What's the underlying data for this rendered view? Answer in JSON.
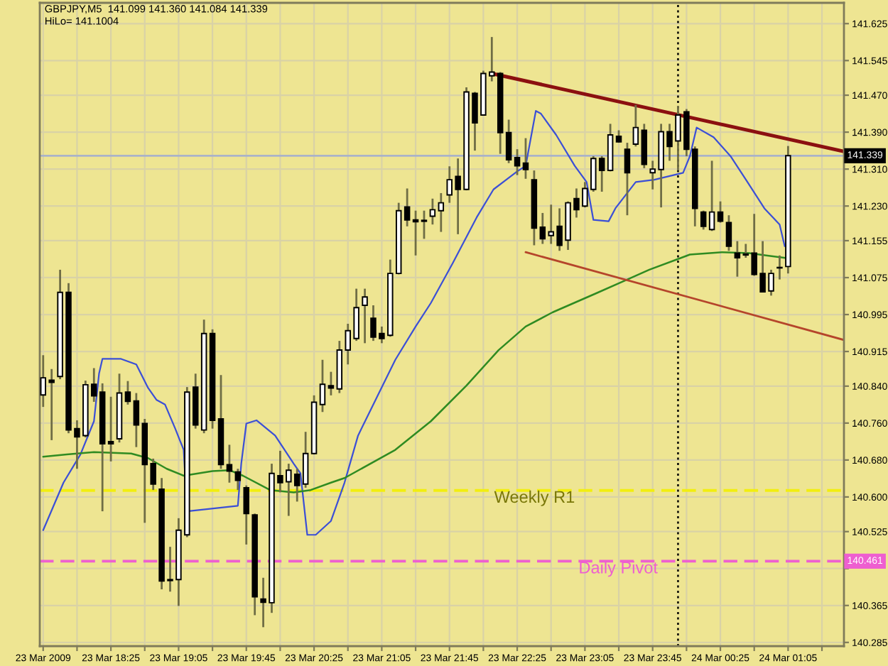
{
  "chart_data": {
    "type": "candlestick",
    "title": "GBPJPY,M5  141.099 141.360 141.084 141.339",
    "subtitle": "HiLo= 141.1004",
    "x": [
      "2009-03-23T17:45",
      "2009-03-23T17:50",
      "2009-03-23T17:55",
      "2009-03-23T18:00",
      "2009-03-23T18:05",
      "2009-03-23T18:10",
      "2009-03-23T18:15",
      "2009-03-23T18:20",
      "2009-03-23T18:25",
      "2009-03-23T18:30",
      "2009-03-23T18:35",
      "2009-03-23T18:40",
      "2009-03-23T18:45",
      "2009-03-23T18:50",
      "2009-03-23T18:55",
      "2009-03-23T19:00",
      "2009-03-23T19:05",
      "2009-03-23T19:10",
      "2009-03-23T19:15",
      "2009-03-23T19:20",
      "2009-03-23T19:25",
      "2009-03-23T19:30",
      "2009-03-23T19:35",
      "2009-03-23T19:40",
      "2009-03-23T19:45",
      "2009-03-23T19:50",
      "2009-03-23T19:55",
      "2009-03-23T20:00",
      "2009-03-23T20:05",
      "2009-03-23T20:10",
      "2009-03-23T20:15",
      "2009-03-23T20:20",
      "2009-03-23T20:25",
      "2009-03-23T20:30",
      "2009-03-23T20:35",
      "2009-03-23T20:40",
      "2009-03-23T20:45",
      "2009-03-23T20:50",
      "2009-03-23T20:55",
      "2009-03-23T21:00",
      "2009-03-23T21:05",
      "2009-03-23T21:10",
      "2009-03-23T21:15",
      "2009-03-23T21:20",
      "2009-03-23T21:25",
      "2009-03-23T21:30",
      "2009-03-23T21:35",
      "2009-03-23T21:40",
      "2009-03-23T21:45",
      "2009-03-23T21:50",
      "2009-03-23T21:55",
      "2009-03-23T22:00",
      "2009-03-23T22:05",
      "2009-03-23T22:10",
      "2009-03-23T22:15",
      "2009-03-23T22:20",
      "2009-03-23T22:25",
      "2009-03-23T22:30",
      "2009-03-23T22:35",
      "2009-03-23T22:40",
      "2009-03-23T22:45",
      "2009-03-23T22:50",
      "2009-03-23T22:55",
      "2009-03-23T23:00",
      "2009-03-23T23:05",
      "2009-03-23T23:10",
      "2009-03-23T23:15",
      "2009-03-23T23:20",
      "2009-03-23T23:25",
      "2009-03-23T23:30",
      "2009-03-23T23:35",
      "2009-03-23T23:40",
      "2009-03-23T23:45",
      "2009-03-23T23:50",
      "2009-03-23T23:55",
      "2009-03-24T00:00",
      "2009-03-24T00:05",
      "2009-03-24T00:10",
      "2009-03-24T00:15",
      "2009-03-24T00:20",
      "2009-03-24T00:25",
      "2009-03-24T00:30",
      "2009-03-24T00:35",
      "2009-03-24T00:40",
      "2009-03-24T00:45",
      "2009-03-24T00:50",
      "2009-03-24T00:55",
      "2009-03-24T01:00",
      "2009-03-24T01:05"
    ],
    "ohlc": [
      [
        140.821,
        140.907,
        140.795,
        140.858
      ],
      [
        140.853,
        140.877,
        140.723,
        140.848
      ],
      [
        140.861,
        141.092,
        140.855,
        141.043
      ],
      [
        141.043,
        141.063,
        140.738,
        140.745
      ],
      [
        140.748,
        140.766,
        140.661,
        140.73
      ],
      [
        140.733,
        140.852,
        140.729,
        140.843
      ],
      [
        140.844,
        140.879,
        140.806,
        140.819
      ],
      [
        140.827,
        140.846,
        140.569,
        140.715
      ],
      [
        140.72,
        140.817,
        140.677,
        140.715
      ],
      [
        140.726,
        140.867,
        140.718,
        140.825
      ],
      [
        140.827,
        140.851,
        140.8,
        140.807
      ],
      [
        140.808,
        140.825,
        140.708,
        140.756
      ],
      [
        140.759,
        140.769,
        140.544,
        140.67
      ],
      [
        140.672,
        140.683,
        140.615,
        140.628
      ],
      [
        140.617,
        140.641,
        140.4,
        140.418
      ],
      [
        140.421,
        140.492,
        140.395,
        140.419
      ],
      [
        140.421,
        140.554,
        140.364,
        140.528
      ],
      [
        140.518,
        140.838,
        140.513,
        140.827
      ],
      [
        140.838,
        140.867,
        140.748,
        140.756
      ],
      [
        140.745,
        140.984,
        140.738,
        140.954
      ],
      [
        140.954,
        140.963,
        140.748,
        140.766
      ],
      [
        140.769,
        140.864,
        140.661,
        140.67
      ],
      [
        140.67,
        140.713,
        140.631,
        140.656
      ],
      [
        140.654,
        140.661,
        140.615,
        140.636
      ],
      [
        140.62,
        140.625,
        140.497,
        140.564
      ],
      [
        140.561,
        140.564,
        140.344,
        140.384
      ],
      [
        140.379,
        140.425,
        140.318,
        140.372
      ],
      [
        140.371,
        140.672,
        140.349,
        140.651
      ],
      [
        140.646,
        140.7,
        140.61,
        140.631
      ],
      [
        140.633,
        140.672,
        140.559,
        140.658
      ],
      [
        140.649,
        140.661,
        140.59,
        140.625
      ],
      [
        140.628,
        140.741,
        140.62,
        140.694
      ],
      [
        140.694,
        140.82,
        140.692,
        140.805
      ],
      [
        140.8,
        140.897,
        140.784,
        140.844
      ],
      [
        140.841,
        140.871,
        140.82,
        140.836
      ],
      [
        140.834,
        140.938,
        140.825,
        140.918
      ],
      [
        140.918,
        140.975,
        140.887,
        140.96
      ],
      [
        140.943,
        141.051,
        140.938,
        141.01
      ],
      [
        141.015,
        141.051,
        140.933,
        141.033
      ],
      [
        140.987,
        141.015,
        140.938,
        140.946
      ],
      [
        140.954,
        140.969,
        140.933,
        140.943
      ],
      [
        140.95,
        141.114,
        140.947,
        141.084
      ],
      [
        141.084,
        141.237,
        141.082,
        141.22
      ],
      [
        141.228,
        141.268,
        141.186,
        141.2
      ],
      [
        141.2,
        141.22,
        141.123,
        141.196
      ],
      [
        141.197,
        141.22,
        141.159,
        141.199
      ],
      [
        141.208,
        141.246,
        141.19,
        141.222
      ],
      [
        141.22,
        141.258,
        141.174,
        141.237
      ],
      [
        141.254,
        141.316,
        141.237,
        141.287
      ],
      [
        141.294,
        141.333,
        141.169,
        141.266
      ],
      [
        141.266,
        141.487,
        141.264,
        141.477
      ],
      [
        141.474,
        141.477,
        141.35,
        141.41
      ],
      [
        141.427,
        141.523,
        141.427,
        141.517
      ],
      [
        141.512,
        141.596,
        141.5,
        141.52
      ],
      [
        141.517,
        141.52,
        141.343,
        141.389
      ],
      [
        141.389,
        141.417,
        141.323,
        141.33
      ],
      [
        141.335,
        141.353,
        141.297,
        141.317
      ],
      [
        141.323,
        141.377,
        141.289,
        141.309
      ],
      [
        141.287,
        141.307,
        141.145,
        141.182
      ],
      [
        141.184,
        141.215,
        141.148,
        141.159
      ],
      [
        141.166,
        141.233,
        141.148,
        141.174
      ],
      [
        141.186,
        141.225,
        141.133,
        141.145
      ],
      [
        141.156,
        141.24,
        141.135,
        141.237
      ],
      [
        141.246,
        141.268,
        141.205,
        141.222
      ],
      [
        141.23,
        141.282,
        141.227,
        141.268
      ],
      [
        141.266,
        141.338,
        141.261,
        141.333
      ],
      [
        141.333,
        141.338,
        141.261,
        141.307
      ],
      [
        141.307,
        141.408,
        141.305,
        141.384
      ],
      [
        141.381,
        141.394,
        141.367,
        141.369
      ],
      [
        141.353,
        141.367,
        141.21,
        141.302
      ],
      [
        141.364,
        141.449,
        141.359,
        141.4
      ],
      [
        141.394,
        141.408,
        141.312,
        141.32
      ],
      [
        141.302,
        141.328,
        141.266,
        141.31
      ],
      [
        141.309,
        141.408,
        141.227,
        141.391
      ],
      [
        141.391,
        141.408,
        141.328,
        141.359
      ],
      [
        141.371,
        141.446,
        141.307,
        141.427
      ],
      [
        141.434,
        141.44,
        141.338,
        141.353
      ],
      [
        141.353,
        141.359,
        141.186,
        141.225
      ],
      [
        141.217,
        141.22,
        141.179,
        141.186
      ],
      [
        141.179,
        141.328,
        141.176,
        141.217
      ],
      [
        141.217,
        141.24,
        141.194,
        141.197
      ],
      [
        141.194,
        141.21,
        141.133,
        141.143
      ],
      [
        141.128,
        141.154,
        141.077,
        141.118
      ],
      [
        141.126,
        141.148,
        141.118,
        141.124
      ],
      [
        141.128,
        141.213,
        141.079,
        141.082
      ],
      [
        141.084,
        141.154,
        141.043,
        141.044
      ],
      [
        141.046,
        141.092,
        141.036,
        141.084
      ],
      [
        141.096,
        141.123,
        141.071,
        141.097
      ],
      [
        141.099,
        141.36,
        141.084,
        141.339
      ]
    ],
    "series": [
      {
        "type": "line",
        "color": "#3b4fd6",
        "x": [
          "2009-03-23T17:45",
          "2009-03-23T17:57",
          "2009-03-23T18:07",
          "2009-03-23T18:15",
          "2009-03-23T18:18",
          "2009-03-23T18:20",
          "2009-03-23T18:31",
          "2009-03-23T18:40",
          "2009-03-23T18:47",
          "2009-03-23T18:52",
          "2009-03-23T18:57",
          "2009-03-23T19:03",
          "2009-03-23T19:08",
          "2009-03-23T19:10",
          "2009-03-23T19:40",
          "2009-03-23T19:42",
          "2009-03-23T19:45",
          "2009-03-23T19:51",
          "2009-03-23T20:02",
          "2009-03-23T20:13",
          "2009-03-23T20:17",
          "2009-03-23T20:21",
          "2009-03-23T20:26",
          "2009-03-23T20:35",
          "2009-03-23T20:43",
          "2009-03-23T20:51",
          "2009-03-23T21:02",
          "2009-03-23T21:13",
          "2009-03-23T21:25",
          "2009-03-23T21:34",
          "2009-03-23T21:47",
          "2009-03-23T22:01",
          "2009-03-23T22:11",
          "2009-03-23T22:25",
          "2009-03-23T22:30",
          "2009-03-23T22:36",
          "2009-03-23T22:39",
          "2009-03-23T22:48",
          "2009-03-23T22:59",
          "2009-03-23T23:06",
          "2009-03-23T23:10",
          "2009-03-23T23:19",
          "2009-03-23T23:23",
          "2009-03-23T23:35",
          "2009-03-23T23:46",
          "2009-03-24T00:03",
          "2009-03-24T00:07",
          "2009-03-24T00:11",
          "2009-03-24T00:21",
          "2009-03-24T00:31",
          "2009-03-24T00:41",
          "2009-03-24T00:51",
          "2009-03-24T01:00",
          "2009-03-24T01:03"
        ],
        "values": [
          140.528,
          140.631,
          140.692,
          140.764,
          140.867,
          140.899,
          140.899,
          140.887,
          140.836,
          140.81,
          140.8,
          140.748,
          140.702,
          140.569,
          140.581,
          140.672,
          140.759,
          140.766,
          140.733,
          140.672,
          140.651,
          140.518,
          140.518,
          140.548,
          140.631,
          140.733,
          140.815,
          140.897,
          140.969,
          141.02,
          141.107,
          141.205,
          141.266,
          141.305,
          141.317,
          141.436,
          141.43,
          141.384,
          141.317,
          141.282,
          141.2,
          141.197,
          141.225,
          141.282,
          141.287,
          141.302,
          141.338,
          141.4,
          141.379,
          141.338,
          141.282,
          141.225,
          141.19,
          141.143
        ]
      },
      {
        "type": "line",
        "color": "#2f8b22",
        "x": [
          "2009-03-23T17:45",
          "2009-03-23T17:59",
          "2009-03-23T18:15",
          "2009-03-23T18:37",
          "2009-03-23T18:47",
          "2009-03-23T18:58",
          "2009-03-23T19:08",
          "2009-03-23T19:25",
          "2009-03-23T19:35",
          "2009-03-23T19:43",
          "2009-03-23T19:59",
          "2009-03-23T20:13",
          "2009-03-23T20:23",
          "2009-03-23T20:35",
          "2009-03-23T20:43",
          "2009-03-23T21:13",
          "2009-03-23T21:34",
          "2009-03-23T21:55",
          "2009-03-23T22:14",
          "2009-03-23T22:30",
          "2009-03-23T22:46",
          "2009-03-23T23:11",
          "2009-03-23T23:27",
          "2009-03-23T23:43",
          "2009-03-24T00:02",
          "2009-03-24T00:07",
          "2009-03-24T00:26",
          "2009-03-24T00:42",
          "2009-03-24T00:52",
          "2009-03-24T01:05"
        ],
        "values": [
          140.687,
          140.692,
          140.697,
          140.694,
          140.684,
          140.661,
          140.646,
          140.656,
          140.658,
          140.646,
          140.615,
          140.61,
          140.615,
          140.631,
          140.641,
          140.702,
          140.764,
          140.841,
          140.918,
          140.969,
          141.0,
          141.04,
          141.066,
          141.092,
          141.118,
          141.125,
          141.13,
          141.128,
          141.123,
          141.117
        ]
      },
      {
        "type": "line",
        "color": "#8b1010",
        "x": [
          "2009-03-23T22:10",
          "2009-03-24T01:38"
        ],
        "values": [
          141.517,
          141.348
        ]
      },
      {
        "type": "line",
        "color": "#b5452b",
        "x": [
          "2009-03-23T22:30",
          "2009-03-24T01:38"
        ],
        "values": [
          141.13,
          140.94
        ]
      }
    ],
    "ref_lines": [
      {
        "axis": "y",
        "value": 141.339,
        "color": "#aab3c8",
        "line_style": "solid"
      },
      {
        "axis": "y",
        "value": 140.614,
        "label": "Weekly R1",
        "color": "#f2ee10",
        "line_style": "dashed"
      },
      {
        "axis": "y",
        "value": 140.461,
        "label": "Daily Pivot",
        "color": "#ee5fd0",
        "line_style": "dashed"
      },
      {
        "axis": "x",
        "value": "2009-03-24T00:00",
        "color": "#000000",
        "line_style": "dotted"
      }
    ],
    "annotations": [
      {
        "text": "141.339",
        "y": 141.339
      },
      {
        "text": "140.461",
        "y": 140.461
      }
    ],
    "xlim": [
      "2009-03-23T17:43",
      "2009-03-24T01:38"
    ],
    "xticks": [
      {
        "value": "2009-03-23T17:45",
        "label": "23 Mar 2009"
      },
      {
        "value": "2009-03-23T18:05",
        "label": null
      },
      {
        "value": "2009-03-23T18:25",
        "label": "23 Mar 18:25"
      },
      {
        "value": "2009-03-23T18:45",
        "label": null
      },
      {
        "value": "2009-03-23T19:05",
        "label": "23 Mar 19:05"
      },
      {
        "value": "2009-03-23T19:25",
        "label": null
      },
      {
        "value": "2009-03-23T19:45",
        "label": "23 Mar 19:45"
      },
      {
        "value": "2009-03-23T20:05",
        "label": null
      },
      {
        "value": "2009-03-23T20:25",
        "label": "23 Mar 20:25"
      },
      {
        "value": "2009-03-23T20:45",
        "label": null
      },
      {
        "value": "2009-03-23T21:05",
        "label": "23 Mar 21:05"
      },
      {
        "value": "2009-03-23T21:25",
        "label": null
      },
      {
        "value": "2009-03-23T21:45",
        "label": "23 Mar 21:45"
      },
      {
        "value": "2009-03-23T22:05",
        "label": null
      },
      {
        "value": "2009-03-23T22:25",
        "label": "23 Mar 22:25"
      },
      {
        "value": "2009-03-23T22:45",
        "label": null
      },
      {
        "value": "2009-03-23T23:05",
        "label": "23 Mar 23:05"
      },
      {
        "value": "2009-03-23T23:25",
        "label": null
      },
      {
        "value": "2009-03-23T23:45",
        "label": "23 Mar 23:45"
      },
      {
        "value": "2009-03-24T00:05",
        "label": null
      },
      {
        "value": "2009-03-24T00:25",
        "label": "24 Mar 00:25"
      },
      {
        "value": "2009-03-24T00:45",
        "label": null
      },
      {
        "value": "2009-03-24T01:05",
        "label": "24 Mar 01:05"
      },
      {
        "value": "2009-03-24T01:25",
        "label": null
      }
    ],
    "ylim": [
      140.277,
      141.67
    ],
    "yticks": [
      141.625,
      141.545,
      {
        "value": 141.47,
        "label": "141.470"
      },
      {
        "value": 141.39,
        "label": "141.390"
      },
      {
        "value": 141.31,
        "label": "141.310"
      },
      {
        "value": 141.23,
        "label": "141.230"
      },
      141.155,
      141.075,
      140.995,
      140.915,
      {
        "value": 140.84,
        "label": "140.840"
      },
      {
        "value": 140.76,
        "label": "140.760"
      },
      {
        "value": 140.68,
        "label": "140.680"
      },
      {
        "value": 140.6,
        "label": "140.600"
      },
      140.525,
      {
        "value": 140.445,
        "label": null
      },
      140.365,
      140.285
    ],
    "grid": true
  }
}
